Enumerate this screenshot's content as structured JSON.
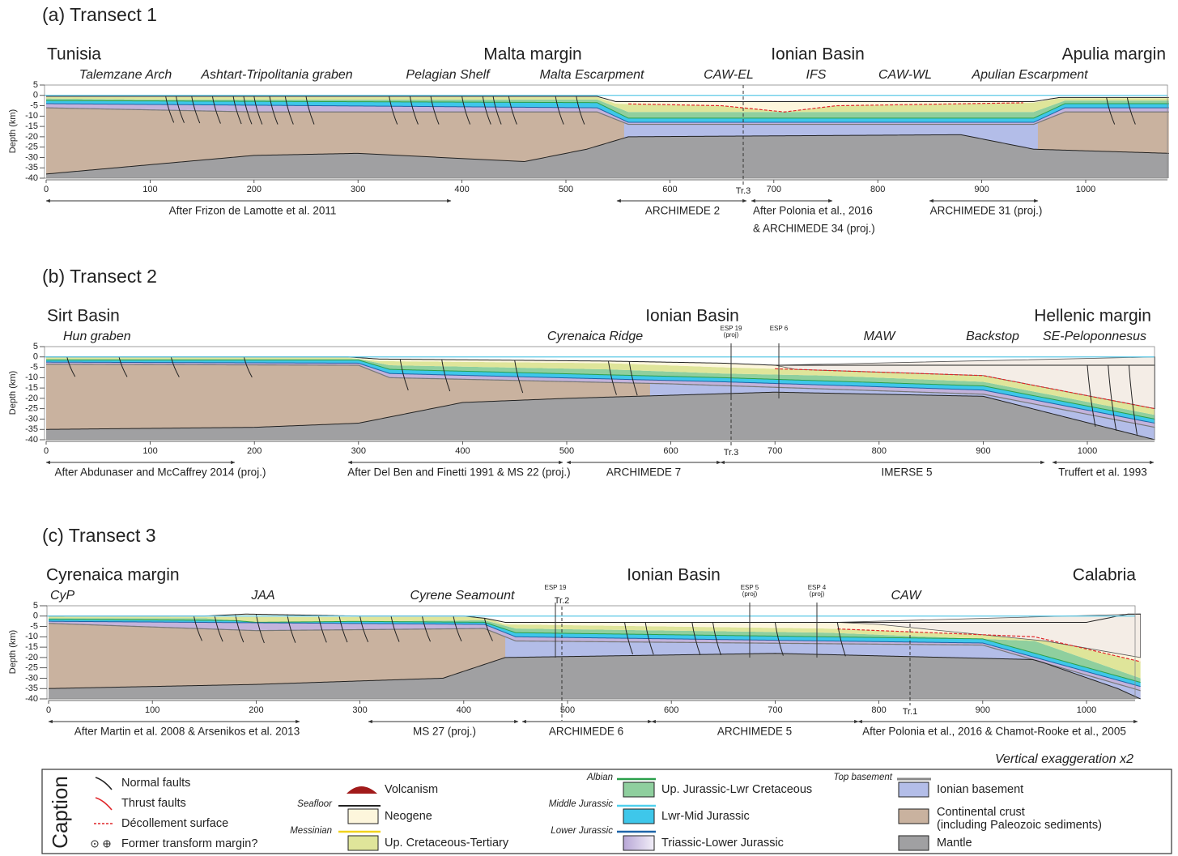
{
  "panels": [
    {
      "title": "(a) Transect 1",
      "regions": [
        "Tunisia",
        "Malta margin",
        "Ionian Basin",
        "Apulia margin"
      ],
      "features": [
        "Talemzane Arch",
        "Ashtart-Tripolitania graben",
        "Pelagian Shelf",
        "Malta Escarpment",
        "CAW-EL",
        "IFS",
        "CAW-WL",
        "Apulian Escarpment"
      ],
      "depth_axis_label": "Depth (km)",
      "depth_ticks": [
        5,
        0,
        -5,
        -10,
        -15,
        -20,
        -25,
        -30,
        -35,
        -40
      ],
      "distance_ticks": [
        0,
        100,
        200,
        300,
        400,
        500,
        600,
        700,
        800,
        900,
        1000
      ],
      "markers": [
        {
          "lines": [
            "Tr.3"
          ]
        }
      ],
      "sources": [
        {
          "lines": [
            "After Frizon de Lamotte et al. 2011"
          ]
        },
        {
          "lines": [
            "ARCHIMEDE 2"
          ]
        },
        {
          "lines": [
            "After Polonia et al., 2016",
            "& ARCHIMEDE 34 (proj.)"
          ]
        },
        {
          "lines": [
            "ARCHIMEDE 31 (proj.)"
          ]
        }
      ]
    },
    {
      "title": "(b) Transect 2",
      "regions": [
        "Sirt Basin",
        "Ionian Basin",
        "Hellenic margin"
      ],
      "features": [
        "Hun graben",
        "Cyrenaica Ridge",
        "MAW",
        "Backstop",
        "SE-Peloponnesus"
      ],
      "depth_axis_label": "Depth (km)",
      "depth_ticks": [
        5,
        0,
        -5,
        -10,
        -15,
        -20,
        -25,
        -30,
        -35,
        -40
      ],
      "distance_ticks": [
        0,
        100,
        200,
        300,
        400,
        500,
        600,
        700,
        800,
        900,
        1000
      ],
      "markers": [
        {
          "lines": [
            "ESP 19",
            "(proj)"
          ]
        },
        {
          "lines": [
            "ESP 6"
          ]
        },
        {
          "lines": [
            "Tr.3"
          ]
        }
      ],
      "sources": [
        {
          "lines": [
            "After Abdunaser and McCaffrey 2014 (proj.)"
          ]
        },
        {
          "lines": [
            "After Del Ben and Finetti 1991 & MS 22 (proj.)"
          ]
        },
        {
          "lines": [
            "ARCHIMEDE 7"
          ]
        },
        {
          "lines": [
            "IMERSE 5"
          ]
        },
        {
          "lines": [
            "Truffert et al. 1993"
          ]
        }
      ]
    },
    {
      "title": "(c) Transect 3",
      "regions": [
        "Cyrenaica margin",
        "Ionian Basin",
        "Calabria"
      ],
      "features": [
        "CyP",
        "JAA",
        "Cyrene Seamount",
        "CAW"
      ],
      "depth_axis_label": "Depth (km)",
      "depth_ticks": [
        5,
        0,
        -5,
        -10,
        -15,
        -20,
        -25,
        -30,
        -35,
        -40
      ],
      "distance_ticks": [
        0,
        100,
        200,
        300,
        400,
        500,
        600,
        700,
        800,
        900,
        1000
      ],
      "markers": [
        {
          "lines": [
            "ESP 19"
          ]
        },
        {
          "lines": [
            "Tr.2"
          ]
        },
        {
          "lines": [
            "ESP 5",
            "(proj)"
          ]
        },
        {
          "lines": [
            "ESP 4",
            "(proj)"
          ]
        },
        {
          "lines": [
            "Tr.1"
          ]
        }
      ],
      "sources": [
        {
          "lines": [
            "After Martin et al. 2008 & Arsenikos et al. 2013"
          ]
        },
        {
          "lines": [
            "MS 27 (proj.)"
          ]
        },
        {
          "lines": [
            "ARCHIMEDE 6"
          ]
        },
        {
          "lines": [
            "ARCHIMEDE 5"
          ]
        },
        {
          "lines": [
            "After Polonia et al., 2016 & Chamot-Rooke et al., 2005"
          ]
        }
      ]
    }
  ],
  "exaggeration": "Vertical exaggeration x2",
  "caption": {
    "title": "Caption",
    "symbols": [
      "Normal faults",
      "Thrust faults",
      "Décollement surface",
      "Former transform margin?",
      "Volcanism"
    ],
    "surfaces": [
      "Seafloor",
      "Messinian",
      "Albian",
      "Middle Jurassic",
      "Lower Jurassic",
      "Top basement"
    ],
    "units": [
      "Neogene",
      "Up. Cretaceous-Tertiary",
      "Up. Jurassic-Lwr Cretaceous",
      "Lwr-Mid Jurassic",
      "Triassic-Lower Jurassic",
      "Ionian basement",
      "Continental crust",
      "(including Paleozoic sediments)",
      "Mantle"
    ]
  }
}
